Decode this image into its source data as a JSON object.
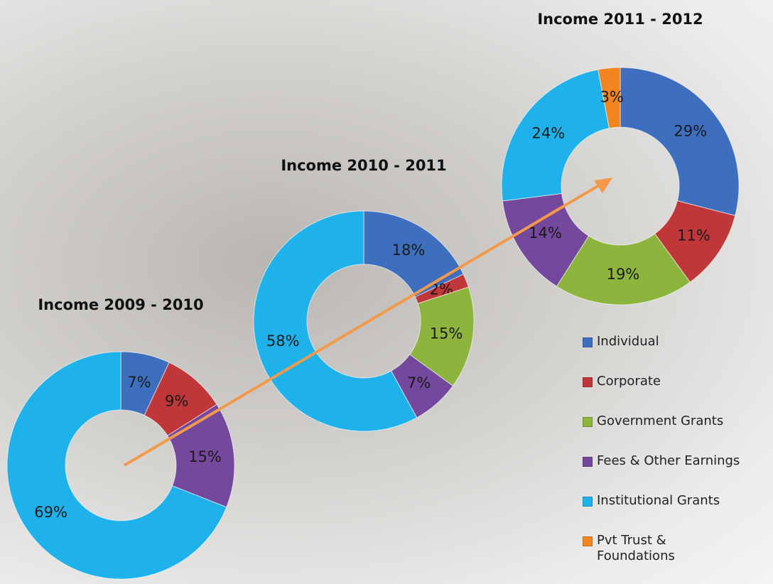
{
  "chart_data": [
    {
      "type": "pie",
      "title": "Income 2009 - 2010",
      "values": [
        7,
        9,
        null,
        15,
        69,
        null
      ],
      "value_labels": [
        "7%",
        "9%",
        null,
        "15%",
        "69%",
        null
      ]
    },
    {
      "type": "pie",
      "title": "Income 2010 - 2011",
      "values": [
        18,
        2,
        15,
        7,
        58,
        null
      ],
      "value_labels": [
        "18%",
        "2%",
        "15%",
        "7%",
        "58%",
        null
      ]
    },
    {
      "type": "pie",
      "title": "Income 2011 - 2012",
      "values": [
        29,
        11,
        19,
        14,
        24,
        3
      ],
      "value_labels": [
        "29%",
        "11%",
        "19%",
        "14%",
        "24%",
        "3%"
      ]
    }
  ],
  "legend": {
    "position": "right",
    "categories": [
      "Individual",
      "Corporate",
      "Government Grants",
      "Fees & Other Earnings",
      "Institutional Grants",
      "Pvt Trust & Foundations"
    ],
    "colors": [
      "#3e6fbf",
      "#c0373a",
      "#8db43d",
      "#74489c",
      "#1fb2ea",
      "#f08522"
    ]
  }
}
